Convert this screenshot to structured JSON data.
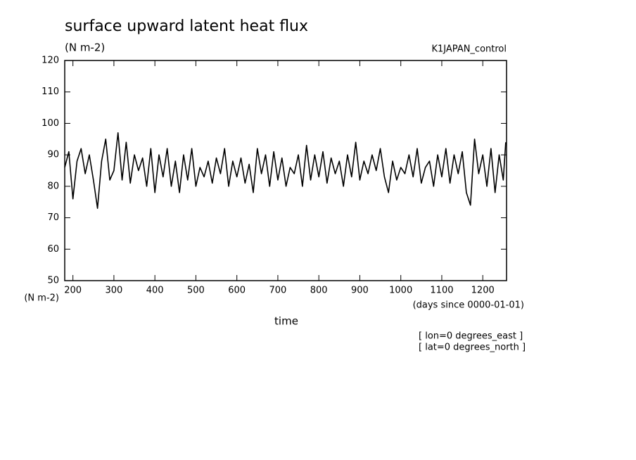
{
  "chart_data": {
    "type": "line",
    "title": "surface upward latent heat flux",
    "subtitle": "(N m-2)",
    "annotation": "K1JAPAN_control",
    "y_label": "(N m-2)",
    "x_units": "(days since 0000-01-01)",
    "x_label": "time",
    "notes": [
      "[ lon=0 degrees_east ]",
      "[ lat=0 degrees_north ]"
    ],
    "x": [
      180,
      190,
      200,
      210,
      220,
      230,
      240,
      250,
      260,
      270,
      280,
      290,
      300,
      310,
      320,
      330,
      340,
      350,
      360,
      370,
      380,
      390,
      400,
      410,
      420,
      430,
      440,
      450,
      460,
      470,
      480,
      490,
      500,
      510,
      520,
      530,
      540,
      550,
      560,
      570,
      580,
      590,
      600,
      610,
      620,
      630,
      640,
      650,
      660,
      670,
      680,
      690,
      700,
      710,
      720,
      730,
      740,
      750,
      760,
      770,
      780,
      790,
      800,
      810,
      820,
      830,
      840,
      850,
      860,
      870,
      880,
      890,
      900,
      910,
      920,
      930,
      940,
      950,
      960,
      970,
      980,
      990,
      1000,
      1010,
      1020,
      1030,
      1040,
      1050,
      1060,
      1070,
      1080,
      1090,
      1100,
      1110,
      1120,
      1130,
      1140,
      1150,
      1160,
      1170,
      1180,
      1190,
      1200,
      1210,
      1220,
      1230,
      1240,
      1250,
      1256
    ],
    "series": [
      {
        "name": "surface upward latent heat flux",
        "color": "#000000",
        "values": [
          86,
          91,
          76,
          88,
          92,
          84,
          90,
          82,
          73,
          88,
          95,
          82,
          85,
          97,
          82,
          94,
          81,
          90,
          85,
          89,
          80,
          92,
          78,
          90,
          83,
          92,
          80,
          88,
          78,
          90,
          82,
          92,
          80,
          86,
          83,
          88,
          81,
          89,
          84,
          92,
          80,
          88,
          83,
          89,
          81,
          87,
          78,
          92,
          84,
          90,
          80,
          91,
          82,
          89,
          80,
          86,
          84,
          90,
          80,
          93,
          82,
          90,
          83,
          91,
          81,
          89,
          84,
          88,
          80,
          90,
          83,
          94,
          82,
          88,
          84,
          90,
          85,
          92,
          83,
          78,
          88,
          82,
          86,
          84,
          90,
          83,
          92,
          81,
          86,
          88,
          80,
          90,
          83,
          92,
          81,
          90,
          84,
          91,
          78,
          74,
          95,
          84,
          90,
          80,
          92,
          78,
          90,
          82,
          94
        ]
      }
    ],
    "xlim": [
      180,
      1258
    ],
    "ylim": [
      50,
      120
    ],
    "xticks": [
      200,
      300,
      400,
      500,
      600,
      700,
      800,
      900,
      1000,
      1100,
      1200
    ],
    "yticks": [
      50,
      60,
      70,
      80,
      90,
      100,
      110,
      120
    ]
  }
}
